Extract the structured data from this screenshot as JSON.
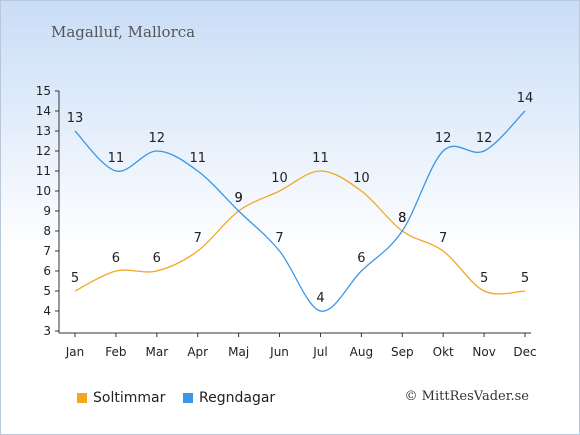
{
  "title": "Magalluf, Mallorca",
  "credit": "© MittResVader.se",
  "chart_data": {
    "type": "line",
    "categories": [
      "Jan",
      "Feb",
      "Mar",
      "Apr",
      "Maj",
      "Jun",
      "Jul",
      "Aug",
      "Sep",
      "Okt",
      "Nov",
      "Dec"
    ],
    "ylim": [
      3,
      15
    ],
    "yticks": [
      3,
      4,
      5,
      6,
      7,
      8,
      9,
      10,
      11,
      12,
      13,
      14,
      15
    ],
    "grid": false,
    "legend_position": "bottom-left",
    "series": [
      {
        "name": "Soltimmar",
        "color": "#f5a623",
        "values": [
          5,
          6,
          6,
          7,
          9,
          10,
          11,
          10,
          8,
          7,
          5,
          5
        ]
      },
      {
        "name": "Regndagar",
        "color": "#3a97e6",
        "values": [
          13,
          11,
          12,
          11,
          9,
          7,
          4,
          6,
          8,
          12,
          12,
          14
        ]
      }
    ]
  }
}
